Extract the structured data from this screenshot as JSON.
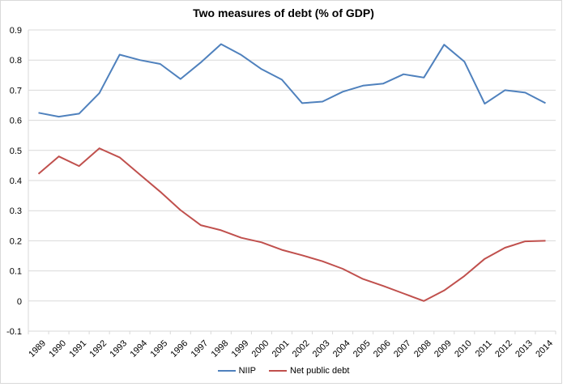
{
  "chart_data": {
    "type": "line",
    "title": "Two measures of debt (% of GDP)",
    "xlabel": "",
    "ylabel": "",
    "x": [
      "1989",
      "1990",
      "1991",
      "1992",
      "1993",
      "1994",
      "1995",
      "1996",
      "1997",
      "1998",
      "1999",
      "2000",
      "2001",
      "2002",
      "2003",
      "2004",
      "2005",
      "2006",
      "2007",
      "2008",
      "2009",
      "2010",
      "2011",
      "2012",
      "2013",
      "2014"
    ],
    "ylim": [
      -0.1,
      0.9
    ],
    "yticks": [
      -0.1,
      0,
      0.1,
      0.2,
      0.3,
      0.4,
      0.5,
      0.6,
      0.7,
      0.8,
      0.9
    ],
    "ytick_labels": [
      "-0.1",
      "0",
      "0.1",
      "0.2",
      "0.3",
      "0.4",
      "0.5",
      "0.6",
      "0.7",
      "0.8",
      "0.9"
    ],
    "grid": true,
    "legend_position": "bottom",
    "series": [
      {
        "name": "NIIP",
        "color": "#4f81bd",
        "values": [
          0.625,
          0.612,
          0.622,
          0.69,
          0.818,
          0.8,
          0.787,
          0.737,
          0.792,
          0.853,
          0.817,
          0.77,
          0.735,
          0.657,
          0.662,
          0.695,
          0.715,
          0.722,
          0.753,
          0.742,
          0.851,
          0.795,
          0.655,
          0.7,
          0.692,
          0.657
        ]
      },
      {
        "name": "Net public debt",
        "color": "#c0504d",
        "values": [
          0.422,
          0.48,
          0.448,
          0.507,
          0.477,
          0.42,
          0.363,
          0.302,
          0.252,
          0.235,
          0.21,
          0.195,
          0.17,
          0.152,
          0.132,
          0.107,
          0.073,
          0.05,
          0.025,
          0.0,
          0.035,
          0.083,
          0.14,
          0.177,
          0.198,
          0.2
        ]
      }
    ]
  }
}
